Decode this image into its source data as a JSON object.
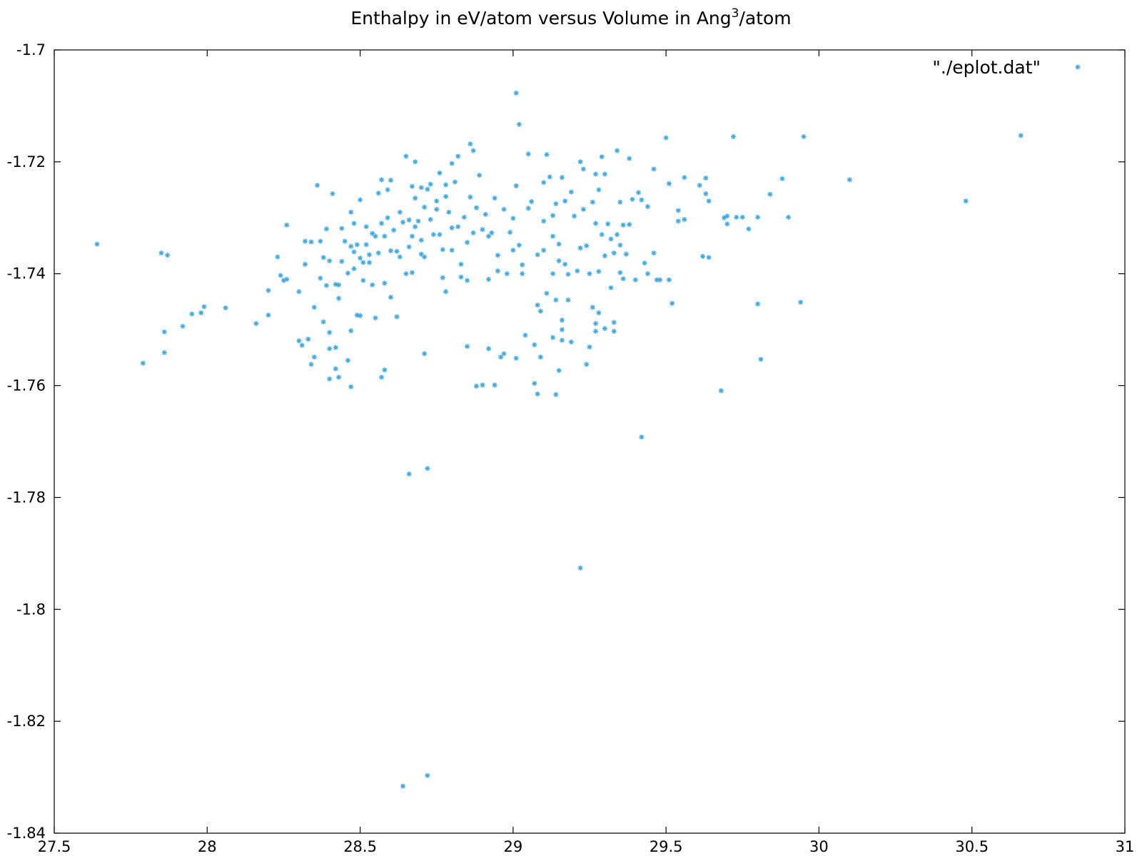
{
  "chart_data": {
    "type": "scatter",
    "title": "Enthalpy in eV/atom versus Volume in Ang",
    "title_sup": "3",
    "title_suffix": "/atom",
    "xlabel": "",
    "ylabel": "",
    "xlim": [
      27.5,
      31
    ],
    "ylim": [
      -1.84,
      -1.7
    ],
    "xticks": [
      27.5,
      28,
      28.5,
      29,
      29.5,
      30,
      30.5,
      31
    ],
    "xtick_labels": [
      "27.5",
      "28",
      "28.5",
      "29",
      "29.5",
      "30",
      "30.5",
      "31"
    ],
    "yticks": [
      -1.7,
      -1.72,
      -1.74,
      -1.76,
      -1.78,
      -1.8,
      -1.82,
      -1.84
    ],
    "ytick_labels": [
      "-1.7",
      "-1.72",
      "-1.74",
      "-1.76",
      "-1.78",
      "-1.8",
      "-1.82",
      "-1.84"
    ],
    "grid": false,
    "legend_position": "top-right",
    "marker_color": "#3ea8e0",
    "series": [
      {
        "name": "\"./eplot.dat\"",
        "points": [
          [
            27.64,
            -1.7347
          ],
          [
            27.79,
            -1.756
          ],
          [
            27.85,
            -1.7363
          ],
          [
            27.87,
            -1.7367
          ],
          [
            27.86,
            -1.7504
          ],
          [
            27.86,
            -1.7541
          ],
          [
            27.92,
            -1.7494
          ],
          [
            27.95,
            -1.7472
          ],
          [
            27.98,
            -1.747
          ],
          [
            27.99,
            -1.7459
          ],
          [
            28.06,
            -1.7461
          ],
          [
            28.16,
            -1.7489
          ],
          [
            28.2,
            -1.743
          ],
          [
            28.2,
            -1.7474
          ],
          [
            28.23,
            -1.737
          ],
          [
            28.24,
            -1.7403
          ],
          [
            28.25,
            -1.7412
          ],
          [
            28.26,
            -1.741
          ],
          [
            28.26,
            -1.7313
          ],
          [
            28.3,
            -1.7432
          ],
          [
            28.3,
            -1.752
          ],
          [
            28.31,
            -1.7528
          ],
          [
            28.32,
            -1.7342
          ],
          [
            28.33,
            -1.7517
          ],
          [
            28.32,
            -1.7383
          ],
          [
            28.34,
            -1.7562
          ],
          [
            28.34,
            -1.7343
          ],
          [
            28.35,
            -1.746
          ],
          [
            28.35,
            -1.7549
          ],
          [
            28.36,
            -1.7242
          ],
          [
            28.37,
            -1.7408
          ],
          [
            28.37,
            -1.7342
          ],
          [
            28.38,
            -1.7371
          ],
          [
            28.38,
            -1.7486
          ],
          [
            28.39,
            -1.7421
          ],
          [
            28.39,
            -1.732
          ],
          [
            28.4,
            -1.7588
          ],
          [
            28.4,
            -1.7505
          ],
          [
            28.4,
            -1.7377
          ],
          [
            28.4,
            -1.7534
          ],
          [
            28.41,
            -1.7257
          ],
          [
            28.42,
            -1.7532
          ],
          [
            28.42,
            -1.7419
          ],
          [
            28.42,
            -1.757
          ],
          [
            28.43,
            -1.742
          ],
          [
            28.43,
            -1.7444
          ],
          [
            28.43,
            -1.7585
          ],
          [
            28.44,
            -1.7378
          ],
          [
            28.44,
            -1.7319
          ],
          [
            28.45,
            -1.7342
          ],
          [
            28.46,
            -1.7555
          ],
          [
            28.46,
            -1.7399
          ],
          [
            28.47,
            -1.7602
          ],
          [
            28.47,
            -1.7351
          ],
          [
            28.47,
            -1.7502
          ],
          [
            28.47,
            -1.729
          ],
          [
            28.48,
            -1.731
          ],
          [
            28.48,
            -1.7391
          ],
          [
            28.48,
            -1.7361
          ],
          [
            28.49,
            -1.7474
          ],
          [
            28.49,
            -1.7348
          ],
          [
            28.5,
            -1.7372
          ],
          [
            28.5,
            -1.7268
          ],
          [
            28.5,
            -1.7475
          ],
          [
            28.51,
            -1.7412
          ],
          [
            28.51,
            -1.738
          ],
          [
            28.52,
            -1.7348
          ],
          [
            28.52,
            -1.7316
          ],
          [
            28.53,
            -1.7366
          ],
          [
            28.53,
            -1.738
          ],
          [
            28.54,
            -1.742
          ],
          [
            28.54,
            -1.7328
          ],
          [
            28.55,
            -1.7479
          ],
          [
            28.55,
            -1.7333
          ],
          [
            28.56,
            -1.7256
          ],
          [
            28.56,
            -1.7363
          ],
          [
            28.57,
            -1.7585
          ],
          [
            28.57,
            -1.731
          ],
          [
            28.57,
            -1.7232
          ],
          [
            28.58,
            -1.7572
          ],
          [
            28.58,
            -1.7333
          ],
          [
            28.58,
            -1.7417
          ],
          [
            28.59,
            -1.725
          ],
          [
            28.59,
            -1.73
          ],
          [
            28.6,
            -1.7442
          ],
          [
            28.6,
            -1.7359
          ],
          [
            28.6,
            -1.7233
          ],
          [
            28.61,
            -1.7322
          ],
          [
            28.62,
            -1.7477
          ],
          [
            28.62,
            -1.736
          ],
          [
            28.63,
            -1.729
          ],
          [
            28.63,
            -1.737
          ],
          [
            28.64,
            -1.7308
          ],
          [
            28.65,
            -1.74
          ],
          [
            28.65,
            -1.719
          ],
          [
            28.66,
            -1.7352
          ],
          [
            28.66,
            -1.7304
          ],
          [
            28.67,
            -1.7333
          ],
          [
            28.67,
            -1.7244
          ],
          [
            28.67,
            -1.7398
          ],
          [
            28.68,
            -1.72
          ],
          [
            28.68,
            -1.7265
          ],
          [
            28.68,
            -1.7316
          ],
          [
            28.69,
            -1.7306
          ],
          [
            28.7,
            -1.7246
          ],
          [
            28.7,
            -1.734
          ],
          [
            28.7,
            -1.7365
          ],
          [
            28.71,
            -1.737
          ],
          [
            28.71,
            -1.7543
          ],
          [
            28.71,
            -1.7281
          ],
          [
            28.72,
            -1.7249
          ],
          [
            28.73,
            -1.7303
          ],
          [
            28.73,
            -1.724
          ],
          [
            28.74,
            -1.733
          ],
          [
            28.75,
            -1.7285
          ],
          [
            28.75,
            -1.727
          ],
          [
            28.76,
            -1.722
          ],
          [
            28.76,
            -1.733
          ],
          [
            28.77,
            -1.7357
          ],
          [
            28.77,
            -1.7407
          ],
          [
            28.78,
            -1.7262
          ],
          [
            28.78,
            -1.7432
          ],
          [
            28.78,
            -1.7241
          ],
          [
            28.79,
            -1.729
          ],
          [
            28.8,
            -1.7358
          ],
          [
            28.8,
            -1.7318
          ],
          [
            28.8,
            -1.7203
          ],
          [
            28.81,
            -1.7236
          ],
          [
            28.82,
            -1.719
          ],
          [
            28.82,
            -1.7316
          ],
          [
            28.83,
            -1.7406
          ],
          [
            28.83,
            -1.7383
          ],
          [
            28.84,
            -1.7299
          ],
          [
            28.85,
            -1.753
          ],
          [
            28.85,
            -1.7344
          ],
          [
            28.85,
            -1.7412
          ],
          [
            28.86,
            -1.7168
          ],
          [
            28.86,
            -1.7263
          ],
          [
            28.87,
            -1.718
          ],
          [
            28.87,
            -1.7327
          ],
          [
            28.88,
            -1.7601
          ],
          [
            28.88,
            -1.7282
          ],
          [
            28.89,
            -1.7224
          ],
          [
            28.9,
            -1.7321
          ],
          [
            28.9,
            -1.7599
          ],
          [
            28.91,
            -1.7294
          ],
          [
            28.92,
            -1.7333
          ],
          [
            28.92,
            -1.741
          ],
          [
            28.92,
            -1.7534
          ],
          [
            28.93,
            -1.7327
          ],
          [
            28.94,
            -1.7599
          ],
          [
            28.94,
            -1.7265
          ],
          [
            28.95,
            -1.7395
          ],
          [
            28.95,
            -1.7367
          ],
          [
            28.96,
            -1.7549
          ],
          [
            28.97,
            -1.7285
          ],
          [
            28.97,
            -1.7543
          ],
          [
            28.98,
            -1.74
          ],
          [
            28.99,
            -1.7326
          ],
          [
            29.0,
            -1.7358
          ],
          [
            29.0,
            -1.7301
          ],
          [
            29.01,
            -1.7551
          ],
          [
            29.01,
            -1.7243
          ],
          [
            29.01,
            -1.7077
          ],
          [
            29.02,
            -1.7349
          ],
          [
            29.02,
            -1.7133
          ],
          [
            29.03,
            -1.7384
          ],
          [
            29.03,
            -1.74
          ],
          [
            29.04,
            -1.751
          ],
          [
            29.05,
            -1.7186
          ],
          [
            29.05,
            -1.7283
          ],
          [
            29.06,
            -1.7271
          ],
          [
            29.07,
            -1.7527
          ],
          [
            29.07,
            -1.7596
          ],
          [
            29.08,
            -1.7366
          ],
          [
            29.08,
            -1.7456
          ],
          [
            29.08,
            -1.7615
          ],
          [
            29.09,
            -1.7467
          ],
          [
            29.09,
            -1.7549
          ],
          [
            29.1,
            -1.7358
          ],
          [
            29.1,
            -1.7306
          ],
          [
            29.1,
            -1.7237
          ],
          [
            29.11,
            -1.7187
          ],
          [
            29.11,
            -1.7435
          ],
          [
            29.12,
            -1.7227
          ],
          [
            29.13,
            -1.7333
          ],
          [
            29.13,
            -1.7296
          ],
          [
            29.13,
            -1.74
          ],
          [
            29.13,
            -1.7514
          ],
          [
            29.14,
            -1.7616
          ],
          [
            29.14,
            -1.7275
          ],
          [
            29.14,
            -1.7447
          ],
          [
            29.15,
            -1.7347
          ],
          [
            29.15,
            -1.7377
          ],
          [
            29.15,
            -1.7573
          ],
          [
            29.16,
            -1.75
          ],
          [
            29.16,
            -1.7228
          ],
          [
            29.16,
            -1.7483
          ],
          [
            29.16,
            -1.7519
          ],
          [
            29.17,
            -1.7383
          ],
          [
            29.17,
            -1.727
          ],
          [
            29.18,
            -1.7401
          ],
          [
            29.18,
            -1.7447
          ],
          [
            29.19,
            -1.7254
          ],
          [
            29.19,
            -1.7522
          ],
          [
            29.2,
            -1.7297
          ],
          [
            29.21,
            -1.7395
          ],
          [
            29.22,
            -1.72
          ],
          [
            29.22,
            -1.7926
          ],
          [
            29.22,
            -1.7354
          ],
          [
            29.23,
            -1.7213
          ],
          [
            29.23,
            -1.7285
          ],
          [
            29.24,
            -1.7562
          ],
          [
            29.24,
            -1.735
          ],
          [
            29.25,
            -1.74
          ],
          [
            29.25,
            -1.7531
          ],
          [
            29.26,
            -1.746
          ],
          [
            29.26,
            -1.7272
          ],
          [
            29.27,
            -1.731
          ],
          [
            29.27,
            -1.7222
          ],
          [
            29.27,
            -1.7489
          ],
          [
            29.27,
            -1.7503
          ],
          [
            29.28,
            -1.7396
          ],
          [
            29.28,
            -1.725
          ],
          [
            29.28,
            -1.747
          ],
          [
            29.29,
            -1.733
          ],
          [
            29.29,
            -1.7191
          ],
          [
            29.3,
            -1.7498
          ],
          [
            29.3,
            -1.7368
          ],
          [
            29.3,
            -1.7222
          ],
          [
            29.31,
            -1.7311
          ],
          [
            29.32,
            -1.7338
          ],
          [
            29.32,
            -1.7425
          ],
          [
            29.33,
            -1.7363
          ],
          [
            29.33,
            -1.7503
          ],
          [
            29.33,
            -1.7487
          ],
          [
            29.34,
            -1.718
          ],
          [
            29.34,
            -1.733
          ],
          [
            29.35,
            -1.7272
          ],
          [
            29.35,
            -1.7349
          ],
          [
            29.35,
            -1.7398
          ],
          [
            29.36,
            -1.7313
          ],
          [
            29.36,
            -1.7409
          ],
          [
            29.37,
            -1.7365
          ],
          [
            29.38,
            -1.7194
          ],
          [
            29.38,
            -1.7312
          ],
          [
            29.39,
            -1.7267
          ],
          [
            29.4,
            -1.7411
          ],
          [
            29.41,
            -1.7255
          ],
          [
            29.42,
            -1.7692
          ],
          [
            29.42,
            -1.7268
          ],
          [
            29.43,
            -1.7381
          ],
          [
            29.44,
            -1.74
          ],
          [
            29.44,
            -1.728
          ],
          [
            29.46,
            -1.7363
          ],
          [
            29.46,
            -1.7213
          ],
          [
            29.47,
            -1.7411
          ],
          [
            29.48,
            -1.7411
          ],
          [
            29.5,
            -1.7157
          ],
          [
            29.51,
            -1.7411
          ],
          [
            29.51,
            -1.7239
          ],
          [
            29.52,
            -1.7453
          ],
          [
            29.54,
            -1.7306
          ],
          [
            29.54,
            -1.7287
          ],
          [
            29.56,
            -1.7303
          ],
          [
            29.56,
            -1.7228
          ],
          [
            29.61,
            -1.7242
          ],
          [
            29.62,
            -1.7369
          ],
          [
            29.63,
            -1.7229
          ],
          [
            29.63,
            -1.7257
          ],
          [
            29.64,
            -1.7371
          ],
          [
            29.64,
            -1.727
          ],
          [
            29.68,
            -1.7609
          ],
          [
            29.69,
            -1.73
          ],
          [
            29.7,
            -1.7311
          ],
          [
            29.7,
            -1.7297
          ],
          [
            29.72,
            -1.7155
          ],
          [
            29.73,
            -1.7299
          ],
          [
            29.75,
            -1.7299
          ],
          [
            29.77,
            -1.732
          ],
          [
            29.8,
            -1.7299
          ],
          [
            29.8,
            -1.7454
          ],
          [
            29.81,
            -1.7553
          ],
          [
            29.84,
            -1.7258
          ],
          [
            29.88,
            -1.723
          ],
          [
            29.9,
            -1.7299
          ],
          [
            29.94,
            -1.7451
          ],
          [
            29.95,
            -1.7155
          ],
          [
            30.1,
            -1.7232
          ],
          [
            30.48,
            -1.727
          ],
          [
            30.66,
            -1.7153
          ],
          [
            28.72,
            -1.7748
          ],
          [
            28.66,
            -1.7758
          ],
          [
            28.64,
            -1.8316
          ],
          [
            28.72,
            -1.8297
          ]
        ]
      }
    ]
  }
}
